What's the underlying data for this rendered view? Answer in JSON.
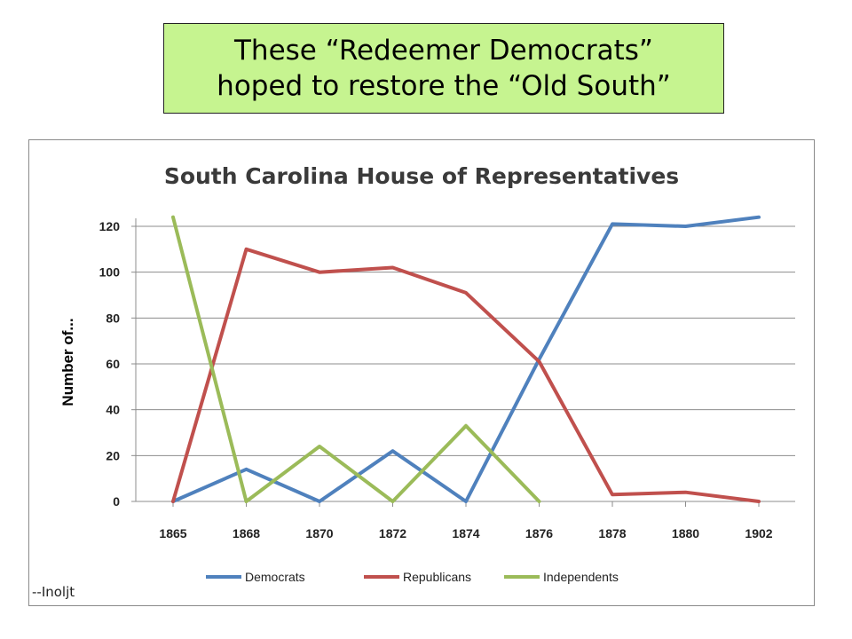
{
  "slide": {
    "banner_line1": "These “Redeemer Democrats”",
    "banner_line2": "hoped to restore the “Old South”",
    "banner_color": "#c6f490",
    "credit": "--Inoljt"
  },
  "chart_data": {
    "type": "line",
    "title": "South Carolina House of Representatives",
    "ylabel": "Number of...",
    "xlabel": "",
    "categories": [
      "1865",
      "1868",
      "1870",
      "1872",
      "1874",
      "1876",
      "1878",
      "1880",
      "1902"
    ],
    "ylim": [
      0,
      120
    ],
    "yticks": [
      0,
      20,
      40,
      60,
      80,
      100,
      120
    ],
    "grid": true,
    "legend": "bottom",
    "series": [
      {
        "name": "Democrats",
        "color": "#4f81bd",
        "values": [
          0,
          14,
          0,
          22,
          0,
          62,
          121,
          120,
          124
        ]
      },
      {
        "name": "Republicans",
        "color": "#c0504d",
        "values": [
          0,
          110,
          100,
          102,
          91,
          61,
          3,
          4,
          0
        ]
      },
      {
        "name": "Independents",
        "color": "#9bbb59",
        "values": [
          124,
          0,
          24,
          0,
          33,
          0,
          null,
          null,
          null
        ]
      }
    ]
  }
}
